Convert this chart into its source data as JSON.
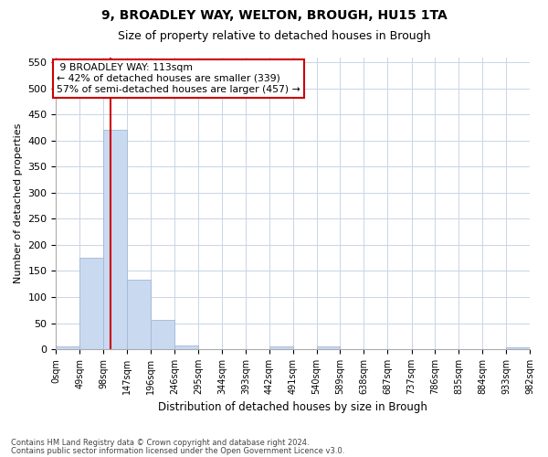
{
  "title1": "9, BROADLEY WAY, WELTON, BROUGH, HU15 1TA",
  "title2": "Size of property relative to detached houses in Brough",
  "xlabel": "Distribution of detached houses by size in Brough",
  "ylabel": "Number of detached properties",
  "footnote1": "Contains HM Land Registry data © Crown copyright and database right 2024.",
  "footnote2": "Contains public sector information licensed under the Open Government Licence v3.0.",
  "annotation_line1": "9 BROADLEY WAY: 113sqm",
  "annotation_line2": "← 42% of detached houses are smaller (339)",
  "annotation_line3": "57% of semi-detached houses are larger (457) →",
  "property_size": 113,
  "bar_color": "#c9d9f0",
  "bar_edge_color": "#a0b8d8",
  "redline_color": "#cc0000",
  "annotation_box_color": "#ffffff",
  "annotation_box_edge": "#cc0000",
  "background_color": "#ffffff",
  "grid_color": "#c8d4e8",
  "bin_edges": [
    0,
    49,
    98,
    147,
    196,
    246,
    295,
    344,
    393,
    442,
    491,
    540,
    589,
    638,
    687,
    737,
    786,
    835,
    884,
    933,
    982
  ],
  "bin_labels": [
    "0sqm",
    "49sqm",
    "98sqm",
    "147sqm",
    "196sqm",
    "246sqm",
    "295sqm",
    "344sqm",
    "393sqm",
    "442sqm",
    "491sqm",
    "540sqm",
    "589sqm",
    "638sqm",
    "687sqm",
    "737sqm",
    "786sqm",
    "835sqm",
    "884sqm",
    "933sqm",
    "982sqm"
  ],
  "bar_heights": [
    5,
    175,
    420,
    133,
    57,
    8,
    0,
    0,
    0,
    5,
    0,
    5,
    0,
    0,
    0,
    0,
    0,
    0,
    0,
    3
  ],
  "ylim": [
    0,
    560
  ],
  "yticks": [
    0,
    50,
    100,
    150,
    200,
    250,
    300,
    350,
    400,
    450,
    500,
    550
  ]
}
